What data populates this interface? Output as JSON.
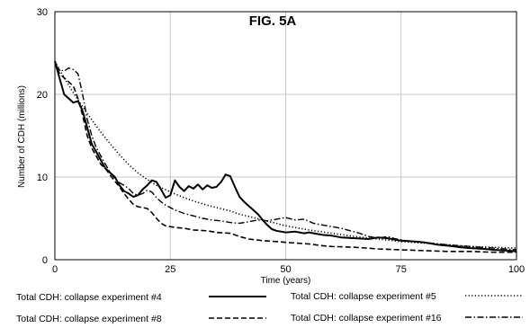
{
  "chart_data": {
    "type": "line",
    "title": "FIG. 5A",
    "xlabel": "Time (years)",
    "ylabel": "Number of CDH (millions)",
    "xlim": [
      0,
      100
    ],
    "ylim": [
      0,
      30
    ],
    "xticks": [
      0,
      25,
      50,
      75,
      100
    ],
    "yticks": [
      0,
      10,
      20,
      30
    ],
    "grid": true,
    "legend_position": "bottom",
    "series": [
      {
        "name": "Total CDH:  collapse experiment #4",
        "style": "solid",
        "points": [
          [
            0,
            24
          ],
          [
            1,
            22
          ],
          [
            2,
            20
          ],
          [
            3,
            19.5
          ],
          [
            4,
            19
          ],
          [
            5,
            19.2
          ],
          [
            6,
            18
          ],
          [
            7,
            16
          ],
          [
            8,
            14
          ],
          [
            9,
            13
          ],
          [
            10,
            12
          ],
          [
            11,
            11
          ],
          [
            12,
            10.5
          ],
          [
            13,
            10
          ],
          [
            14,
            9
          ],
          [
            15,
            8.3
          ],
          [
            16,
            8
          ],
          [
            17,
            7.6
          ],
          [
            18,
            7.8
          ],
          [
            19,
            8.5
          ],
          [
            20,
            9
          ],
          [
            21,
            9.6
          ],
          [
            22,
            9.4
          ],
          [
            23,
            8.5
          ],
          [
            24,
            7.5
          ],
          [
            25,
            7.8
          ],
          [
            26,
            9.6
          ],
          [
            27,
            8.8
          ],
          [
            28,
            8.3
          ],
          [
            29,
            8.9
          ],
          [
            30,
            8.6
          ],
          [
            31,
            9.1
          ],
          [
            32,
            8.5
          ],
          [
            33,
            9
          ],
          [
            34,
            8.7
          ],
          [
            35,
            8.8
          ],
          [
            36,
            9.4
          ],
          [
            37,
            10.3
          ],
          [
            38,
            10.1
          ],
          [
            39,
            8.8
          ],
          [
            40,
            7.6
          ],
          [
            41,
            7
          ],
          [
            42,
            6.5
          ],
          [
            43,
            6
          ],
          [
            44,
            5.5
          ],
          [
            45,
            4.8
          ],
          [
            46,
            4.2
          ],
          [
            47,
            3.7
          ],
          [
            48,
            3.5
          ],
          [
            50,
            3.3
          ],
          [
            52,
            3.4
          ],
          [
            54,
            3.2
          ],
          [
            55,
            3.3
          ],
          [
            58,
            3
          ],
          [
            60,
            2.9
          ],
          [
            62,
            2.7
          ],
          [
            65,
            2.6
          ],
          [
            68,
            2.5
          ],
          [
            70,
            2.7
          ],
          [
            72,
            2.6
          ],
          [
            75,
            2.3
          ],
          [
            78,
            2.2
          ],
          [
            80,
            2.1
          ],
          [
            83,
            1.8
          ],
          [
            85,
            1.7
          ],
          [
            88,
            1.5
          ],
          [
            90,
            1.4
          ],
          [
            93,
            1.3
          ],
          [
            95,
            1.2
          ],
          [
            98,
            1.1
          ],
          [
            100,
            1
          ]
        ]
      },
      {
        "name": "Total CDH:  collapse experiment #5",
        "style": "dotted",
        "points": [
          [
            0,
            24
          ],
          [
            2,
            22
          ],
          [
            4,
            20.2
          ],
          [
            6,
            18.5
          ],
          [
            8,
            16.9
          ],
          [
            10,
            15.4
          ],
          [
            12,
            14
          ],
          [
            14,
            12.7
          ],
          [
            16,
            11.5
          ],
          [
            18,
            10.5
          ],
          [
            20,
            9.7
          ],
          [
            22,
            9
          ],
          [
            25,
            8.2
          ],
          [
            28,
            7.5
          ],
          [
            30,
            7.1
          ],
          [
            33,
            6.6
          ],
          [
            35,
            6.3
          ],
          [
            38,
            5.9
          ],
          [
            40,
            5.5
          ],
          [
            43,
            5.1
          ],
          [
            45,
            4.8
          ],
          [
            48,
            4.4
          ],
          [
            50,
            4.1
          ],
          [
            55,
            3.6
          ],
          [
            60,
            3.2
          ],
          [
            65,
            2.8
          ],
          [
            70,
            2.5
          ],
          [
            75,
            2.2
          ],
          [
            80,
            2
          ],
          [
            85,
            1.8
          ],
          [
            90,
            1.6
          ],
          [
            95,
            1.5
          ],
          [
            100,
            1.4
          ]
        ]
      },
      {
        "name": "Total CDH:  collapse experiment #8",
        "style": "dashed",
        "points": [
          [
            0,
            24
          ],
          [
            1,
            22.5
          ],
          [
            2,
            22
          ],
          [
            3,
            21.5
          ],
          [
            4,
            21
          ],
          [
            5,
            19.5
          ],
          [
            6,
            17.5
          ],
          [
            7,
            15
          ],
          [
            8,
            13.5
          ],
          [
            9,
            12.5
          ],
          [
            10,
            11.5
          ],
          [
            11,
            11
          ],
          [
            12,
            10.2
          ],
          [
            13,
            9.5
          ],
          [
            14,
            8.8
          ],
          [
            15,
            8
          ],
          [
            16,
            7.3
          ],
          [
            17,
            6.7
          ],
          [
            18,
            6.4
          ],
          [
            19,
            6.3
          ],
          [
            20,
            6.2
          ],
          [
            21,
            5.7
          ],
          [
            22,
            5
          ],
          [
            23,
            4.4
          ],
          [
            24,
            4.1
          ],
          [
            26,
            3.9
          ],
          [
            28,
            3.8
          ],
          [
            30,
            3.6
          ],
          [
            33,
            3.5
          ],
          [
            35,
            3.3
          ],
          [
            38,
            3.2
          ],
          [
            40,
            2.8
          ],
          [
            42,
            2.5
          ],
          [
            45,
            2.3
          ],
          [
            48,
            2.2
          ],
          [
            50,
            2.1
          ],
          [
            55,
            1.9
          ],
          [
            58,
            1.7
          ],
          [
            60,
            1.6
          ],
          [
            65,
            1.5
          ],
          [
            70,
            1.3
          ],
          [
            75,
            1.2
          ],
          [
            80,
            1.1
          ],
          [
            85,
            1
          ],
          [
            90,
            1
          ],
          [
            95,
            0.9
          ],
          [
            100,
            0.9
          ]
        ]
      },
      {
        "name": "Total CDH:  collapse experiment #16",
        "style": "dashdot",
        "points": [
          [
            0,
            23.5
          ],
          [
            1,
            23
          ],
          [
            2,
            22.8
          ],
          [
            3,
            23.2
          ],
          [
            4,
            23
          ],
          [
            5,
            22.5
          ],
          [
            6,
            20
          ],
          [
            7,
            17
          ],
          [
            8,
            15
          ],
          [
            9,
            13.5
          ],
          [
            10,
            12.5
          ],
          [
            11,
            11.5
          ],
          [
            12,
            10.5
          ],
          [
            13,
            9.8
          ],
          [
            14,
            9.3
          ],
          [
            15,
            9
          ],
          [
            16,
            8.6
          ],
          [
            17,
            8
          ],
          [
            18,
            7.8
          ],
          [
            19,
            8
          ],
          [
            20,
            8.4
          ],
          [
            21,
            8.2
          ],
          [
            22,
            7.5
          ],
          [
            23,
            7
          ],
          [
            24,
            6.6
          ],
          [
            25,
            6.3
          ],
          [
            26,
            6
          ],
          [
            27,
            5.8
          ],
          [
            28,
            5.6
          ],
          [
            30,
            5.3
          ],
          [
            32,
            5
          ],
          [
            34,
            4.8
          ],
          [
            36,
            4.7
          ],
          [
            38,
            4.5
          ],
          [
            40,
            4.4
          ],
          [
            42,
            4.6
          ],
          [
            44,
            4.8
          ],
          [
            46,
            4.7
          ],
          [
            48,
            4.9
          ],
          [
            50,
            5.1
          ],
          [
            52,
            4.8
          ],
          [
            54,
            4.9
          ],
          [
            56,
            4.4
          ],
          [
            58,
            4.2
          ],
          [
            60,
            4
          ],
          [
            62,
            3.8
          ],
          [
            64,
            3.5
          ],
          [
            66,
            3.2
          ],
          [
            68,
            2.8
          ],
          [
            70,
            2.6
          ],
          [
            72,
            2.8
          ],
          [
            74,
            2.5
          ],
          [
            76,
            2.3
          ],
          [
            80,
            2.1
          ],
          [
            85,
            1.8
          ],
          [
            90,
            1.6
          ],
          [
            95,
            1.4
          ],
          [
            100,
            1.2
          ]
        ]
      }
    ]
  }
}
